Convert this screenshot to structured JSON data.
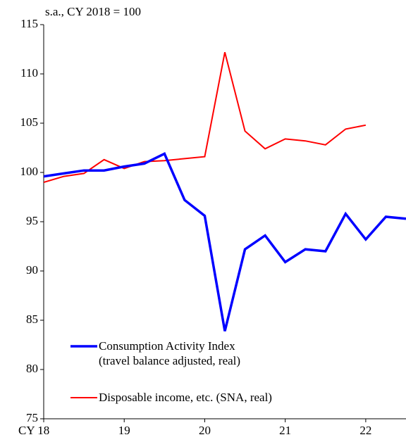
{
  "chart_data": {
    "type": "line",
    "unit_label": "s.a., CY 2018 = 100",
    "x": [
      2018,
      2018.25,
      2018.5,
      2018.75,
      2019,
      2019.25,
      2019.5,
      2019.75,
      2020,
      2020.25,
      2020.5,
      2020.75,
      2021,
      2021.25,
      2021.5,
      2021.75,
      2022,
      2022.25,
      2022.5
    ],
    "series": [
      {
        "name": "Consumption Activity Index\n(travel balance adjusted, real)",
        "color": "#0000ff",
        "values": [
          99.6,
          99.9,
          100.2,
          100.2,
          100.6,
          100.9,
          101.9,
          97.2,
          95.6,
          83.9,
          92.2,
          93.6,
          90.9,
          92.2,
          92.0,
          95.8,
          93.2,
          95.5,
          95.3
        ]
      },
      {
        "name": "Disposable income, etc. (SNA, real)",
        "color": "#ff0000",
        "values": [
          99.0,
          99.6,
          99.9,
          101.3,
          100.4,
          101.1,
          101.2,
          101.4,
          101.6,
          112.2,
          104.2,
          102.4,
          103.4,
          103.2,
          102.8,
          104.4,
          104.8,
          null,
          null
        ]
      }
    ],
    "xlim": [
      2018,
      2022.5
    ],
    "xticks": [
      {
        "value": 2018,
        "label": "CY 18"
      },
      {
        "value": 2019,
        "label": "19"
      },
      {
        "value": 2020,
        "label": "20"
      },
      {
        "value": 2021,
        "label": "21"
      },
      {
        "value": 2022,
        "label": "22"
      }
    ],
    "ylim": [
      75,
      115
    ],
    "yticks": [
      75,
      80,
      85,
      90,
      95,
      100,
      105,
      110,
      115
    ],
    "grid": false
  }
}
